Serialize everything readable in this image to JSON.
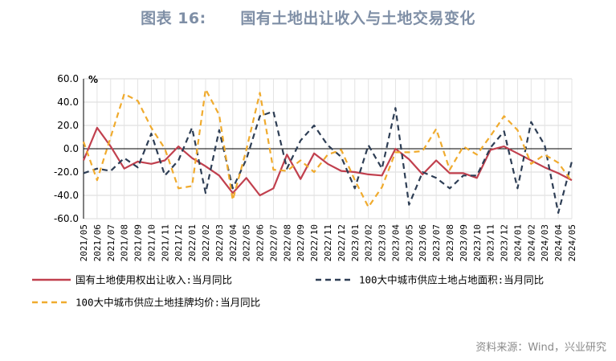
{
  "figure": {
    "title": "图表 16:      国有土地出让收入与土地交易变化",
    "source": "资料来源：Wind，兴业研究"
  },
  "chart_data": {
    "type": "line",
    "ylabel": "%",
    "ylim": [
      -60,
      60
    ],
    "yticks": [
      "60.0",
      "40.0",
      "20.0",
      "0.0",
      "-20.0",
      "-40.0",
      "-60.0"
    ],
    "grid": true,
    "legend_position": "bottom",
    "x": [
      "2021/05",
      "2021/06",
      "2021/07",
      "2021/08",
      "2021/09",
      "2021/10",
      "2021/11",
      "2021/12",
      "2022/01",
      "2022/02",
      "2022/03",
      "2022/04",
      "2022/05",
      "2022/06",
      "2022/07",
      "2022/08",
      "2022/09",
      "2022/10",
      "2022/11",
      "2022/12",
      "2023/01",
      "2023/02",
      "2023/03",
      "2023/04",
      "2023/05",
      "2023/06",
      "2023/07",
      "2023/08",
      "2023/09",
      "2023/10",
      "2023/11",
      "2023/12",
      "2024/01",
      "2024/02",
      "2024/03",
      "2024/04",
      "2024/05"
    ],
    "series": [
      {
        "name": "国有土地使用权出让收入:当月同比",
        "color": "#c1404e",
        "style": "solid",
        "values": [
          -10,
          18,
          2,
          -17,
          -11,
          -13,
          -10,
          2,
          -8,
          -15,
          -23,
          -38,
          -25,
          -40,
          -34,
          -5,
          -26,
          -4,
          -13,
          -19,
          -20,
          -22,
          -23,
          0,
          -9,
          -22,
          -10,
          -21,
          -21,
          -25,
          -1,
          2,
          -4,
          -10,
          -16,
          -21,
          -27
        ]
      },
      {
        "name": "100大中城市供应土地占地面积:当月同比",
        "color": "#2e3e55",
        "style": "dash",
        "values": [
          -21,
          -17,
          -19,
          -8,
          -16,
          13,
          -23,
          -10,
          18,
          -38,
          16,
          -34,
          -9,
          28,
          32,
          -17,
          7,
          20,
          3,
          -7,
          -34,
          3,
          -17,
          35,
          -48,
          -20,
          -25,
          -34,
          -23,
          -23,
          1,
          15,
          -34,
          23,
          3,
          -55,
          -11
        ]
      },
      {
        "name": "100大中城市供应土地挂牌均价:当月同比",
        "color": "#f0ab2e",
        "style": "dash",
        "values": [
          6,
          -27,
          10,
          47,
          41,
          18,
          0,
          -34,
          -32,
          51,
          29,
          -44,
          -1,
          48,
          -18,
          -19,
          -10,
          -20,
          -5,
          -1,
          -27,
          -50,
          -33,
          -3,
          -3,
          -2,
          17,
          -18,
          2,
          -5,
          11,
          28,
          16,
          -13,
          -5,
          -12,
          -28
        ]
      }
    ]
  }
}
